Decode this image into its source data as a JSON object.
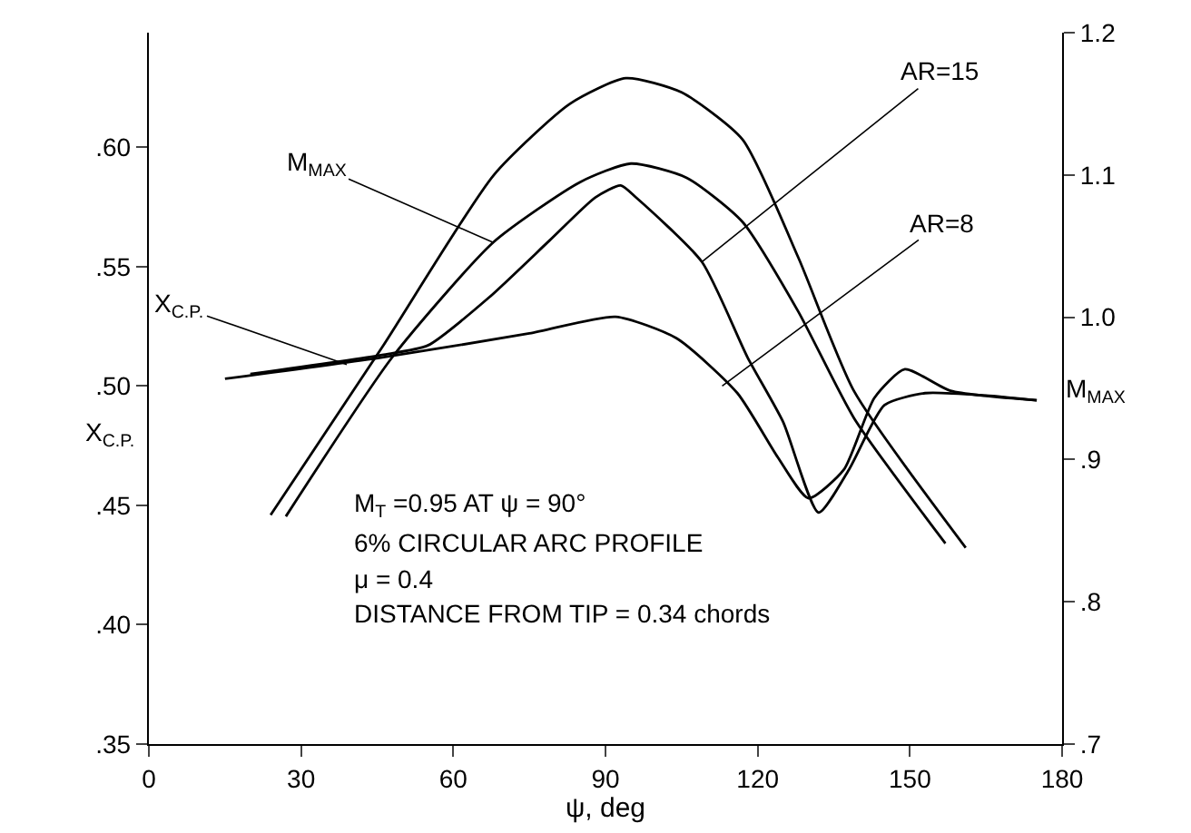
{
  "chart_data": {
    "type": "line",
    "xlabel": "ψ, deg",
    "ylabel": "X$_{C.P.}$",
    "y2label": "M$_{MAX}$",
    "xlim": [
      0,
      180
    ],
    "xticks": [
      0,
      30,
      60,
      90,
      120,
      150,
      180
    ],
    "ylim": [
      0.35,
      0.648
    ],
    "yticks": [
      {
        "value": 0.35,
        "label": ".35"
      },
      {
        "value": 0.4,
        "label": ".40"
      },
      {
        "value": 0.45,
        "label": ".45"
      },
      {
        "value": 0.5,
        "label": ".50"
      },
      {
        "value": 0.55,
        "label": ".55"
      },
      {
        "value": 0.6,
        "label": ".60"
      }
    ],
    "y2lim": [
      0.7,
      1.2
    ],
    "y2ticks": [
      {
        "value": 0.7,
        "label": ".7"
      },
      {
        "value": 0.8,
        "label": ".8"
      },
      {
        "value": 0.9,
        "label": ".9"
      },
      {
        "value": 1.0,
        "label": "1.0"
      },
      {
        "value": 1.1,
        "label": "1.1"
      },
      {
        "value": 1.2,
        "label": "1.2"
      }
    ],
    "marker": "none",
    "line_style": "solid",
    "series": [
      {
        "color": "#000000",
        "axis": "y2",
        "x": [
          24,
          46,
          68,
          83,
          94,
          105,
          117,
          128,
          139,
          161
        ],
        "values": [
          0.861,
          0.979,
          1.1,
          1.15,
          1.168,
          1.158,
          1.125,
          1.042,
          0.948,
          0.838
        ]
      },
      {
        "color": "#000000",
        "axis": "y2",
        "x": [
          27,
          48,
          68,
          85,
          95,
          106,
          117,
          128,
          139,
          157
        ],
        "values": [
          0.86,
          0.972,
          1.053,
          1.095,
          1.108,
          1.098,
          1.067,
          1.004,
          0.929,
          0.841
        ]
      },
      {
        "color": "#000000",
        "x": [
          20,
          46,
          55,
          67,
          79,
          88,
          93,
          96,
          109,
          118,
          125,
          132,
          138,
          145,
          153,
          165,
          175
        ],
        "values": [
          0.505,
          0.513,
          0.517,
          0.537,
          0.561,
          0.579,
          0.584,
          0.579,
          0.552,
          0.512,
          0.485,
          0.447,
          0.465,
          0.492,
          0.497,
          0.496,
          0.494
        ]
      },
      {
        "color": "#000000",
        "x": [
          15,
          46,
          75,
          92,
          104,
          116,
          124,
          130,
          137,
          143,
          149,
          158,
          175
        ],
        "values": [
          0.503,
          0.512,
          0.522,
          0.529,
          0.52,
          0.497,
          0.47,
          0.453,
          0.465,
          0.495,
          0.507,
          0.498,
          0.494
        ]
      }
    ],
    "annotations": [
      {
        "text": "M$_{MAX}$",
        "x": 68,
        "y": 0.56
      },
      {
        "text": "X$_{C.P.}$",
        "x": 39,
        "y": 0.509
      },
      {
        "text": "AR=15",
        "x": 109,
        "y": 0.552
      },
      {
        "text": "AR=8",
        "x": 113,
        "y": 0.5
      },
      "M$_{T}$ =0.95 AT ψ = 90°",
      "6% CIRCULAR ARC PROFILE",
      "μ = 0.4",
      "DISTANCE FROM TIP = 0.34 chords"
    ]
  }
}
